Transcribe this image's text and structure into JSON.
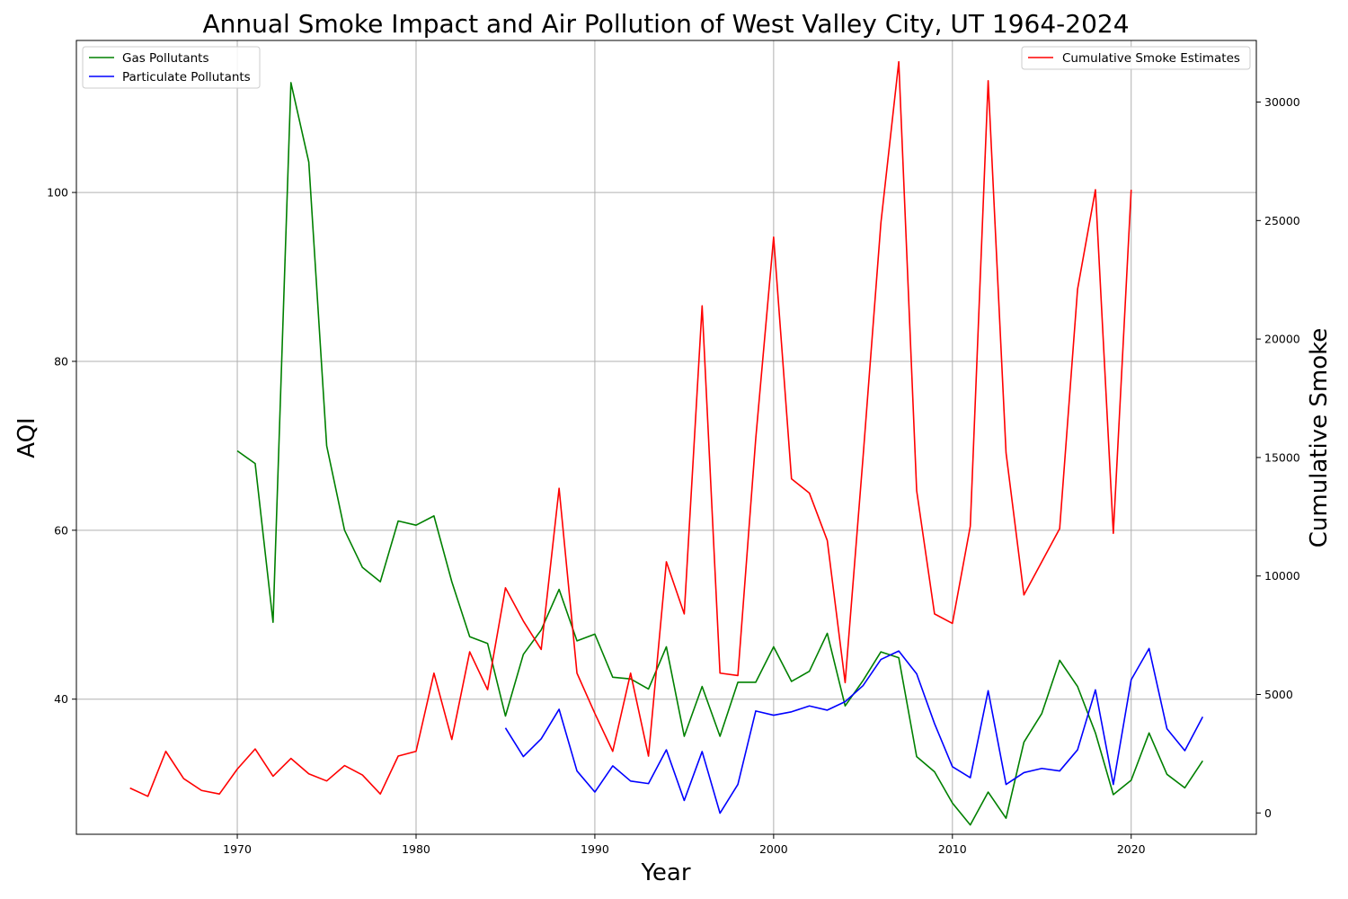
{
  "chart_data": {
    "type": "line",
    "title": "Annual Smoke Impact and Air Pollution of West Valley City, UT 1964-2024",
    "xlabel": "Year",
    "ylabel": "AQI",
    "ylabel_right": "Cumulative Smoke",
    "xlim": [
      1961,
      2027
    ],
    "ylim": [
      24,
      118
    ],
    "ylim_right": [
      -900,
      32600
    ],
    "x_ticks": [
      1970,
      1980,
      1990,
      2000,
      2010,
      2020
    ],
    "y_ticks": [
      40,
      60,
      80,
      100
    ],
    "y_ticks_right": [
      0,
      5000,
      10000,
      15000,
      20000,
      25000,
      30000
    ],
    "grid": true,
    "legend_left_position": "top-left",
    "legend_right_position": "top-right",
    "series": [
      {
        "name": "Gas Pollutants",
        "axis": "left",
        "color": "#008000",
        "x": [
          1970,
          1971,
          1972,
          1973,
          1974,
          1975,
          1976,
          1977,
          1978,
          1979,
          1980,
          1981,
          1982,
          1983,
          1984,
          1985,
          1986,
          1987,
          1988,
          1989,
          1990,
          1991,
          1992,
          1993,
          1994,
          1995,
          1996,
          1997,
          1998,
          1999,
          2000,
          2001,
          2002,
          2003,
          2004,
          2005,
          2006,
          2007,
          2008,
          2009,
          2010,
          2011,
          2012,
          2013,
          2014,
          2015,
          2016,
          2017,
          2018,
          2019,
          2020,
          2021,
          2022,
          2023,
          2024
        ],
        "values": [
          69.4,
          67.9,
          49.1,
          113.0,
          103.6,
          70.0,
          60.0,
          55.6,
          53.9,
          61.1,
          60.6,
          61.7,
          53.9,
          47.4,
          46.6,
          38.0,
          45.3,
          48.2,
          53.0,
          46.9,
          47.7,
          42.6,
          42.4,
          41.2,
          46.2,
          35.6,
          41.5,
          35.6,
          42.0,
          42.0,
          46.2,
          42.1,
          43.3,
          47.8,
          39.2,
          42.2,
          45.6,
          44.9,
          33.2,
          31.4,
          27.7,
          25.1,
          29.0,
          25.9,
          34.9,
          38.3,
          44.6,
          41.5,
          36.0,
          28.7,
          30.4,
          36.0,
          31.1,
          29.5,
          32.7
        ]
      },
      {
        "name": "Particulate Pollutants",
        "axis": "left",
        "color": "#0000ff",
        "x": [
          1985,
          1986,
          1987,
          1988,
          1989,
          1990,
          1991,
          1992,
          1993,
          1994,
          1995,
          1996,
          1997,
          1998,
          1999,
          2000,
          2001,
          2002,
          2003,
          2004,
          2005,
          2006,
          2007,
          2008,
          2009,
          2010,
          2011,
          2012,
          2013,
          2014,
          2015,
          2016,
          2017,
          2018,
          2019,
          2020,
          2021,
          2022,
          2023,
          2024
        ],
        "values": [
          36.6,
          33.2,
          35.3,
          38.8,
          31.5,
          29.0,
          32.1,
          30.3,
          30.0,
          34.0,
          28.0,
          33.8,
          26.5,
          29.9,
          38.6,
          38.1,
          38.5,
          39.2,
          38.7,
          39.7,
          41.6,
          44.7,
          45.7,
          43.0,
          37.1,
          32.0,
          30.7,
          41.0,
          29.9,
          31.3,
          31.8,
          31.5,
          34.0,
          41.1,
          29.9,
          42.3,
          46.0,
          36.5,
          33.9,
          37.9
        ]
      },
      {
        "name": "Cumulative Smoke Estimates",
        "axis": "right",
        "color": "#ff0000",
        "x": [
          1964,
          1965,
          1966,
          1967,
          1968,
          1969,
          1970,
          1971,
          1972,
          1973,
          1974,
          1975,
          1976,
          1977,
          1978,
          1979,
          1980,
          1981,
          1982,
          1983,
          1984,
          1985,
          1986,
          1987,
          1988,
          1989,
          1990,
          1991,
          1992,
          1993,
          1994,
          1995,
          1996,
          1997,
          1998,
          1999,
          2000,
          2001,
          2002,
          2003,
          2004,
          2005,
          2006,
          2007,
          2008,
          2009,
          2010,
          2011,
          2012,
          2013,
          2014,
          2015,
          2016,
          2017,
          2018,
          2019,
          2020
        ],
        "values": [
          1050,
          700,
          2600,
          1450,
          950,
          800,
          1850,
          2700,
          1550,
          2300,
          1650,
          1350,
          2000,
          1600,
          800,
          2400,
          2600,
          5900,
          3100,
          6800,
          5200,
          9500,
          8100,
          6900,
          13700,
          5900,
          4200,
          2600,
          5900,
          2400,
          10600,
          8400,
          21400,
          5900,
          5800,
          15800,
          24300,
          14100,
          13500,
          11500,
          5500,
          15000,
          24900,
          31700,
          13600,
          8400,
          8000,
          12100,
          30900,
          15200,
          9200,
          10600,
          12000,
          22100,
          26300,
          11800,
          26300
        ]
      }
    ]
  }
}
